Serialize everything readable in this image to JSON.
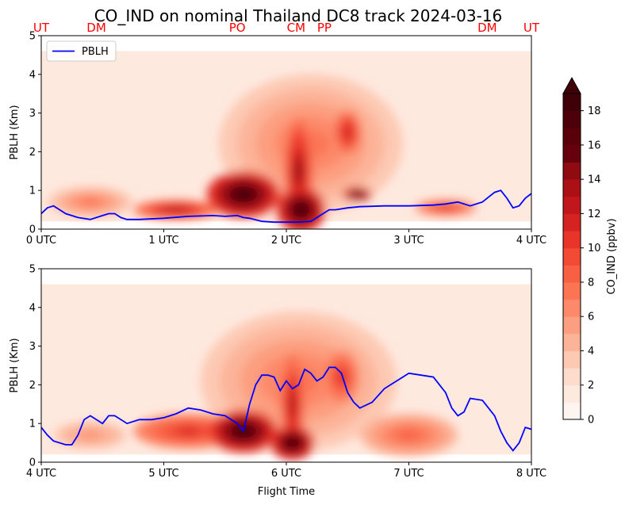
{
  "figure": {
    "title": "CO_IND on nominal Thailand DC8 track 2024-03-16",
    "xlabel": "Flight Time"
  },
  "chart_data": [
    {
      "type": "heatmap",
      "panel": "top",
      "ylabel": "PBLH (Km)",
      "ylim": [
        0,
        5
      ],
      "yticks": [
        "0",
        "1",
        "2",
        "3",
        "4",
        "5"
      ],
      "xlim": [
        0,
        4
      ],
      "xticks": [
        {
          "v": 0,
          "label": "0 UTC"
        },
        {
          "v": 1,
          "label": "1 UTC"
        },
        {
          "v": 2,
          "label": "2 UTC"
        },
        {
          "v": 3,
          "label": "3 UTC"
        },
        {
          "v": 4,
          "label": "4 UTC"
        }
      ],
      "legend": {
        "placement": "upper-left",
        "entries": [
          "PBLH"
        ]
      },
      "location_labels": [
        {
          "v": 0.0,
          "label": "UT"
        },
        {
          "v": 0.45,
          "label": "DM"
        },
        {
          "v": 1.6,
          "label": "PO"
        },
        {
          "v": 2.08,
          "label": "CM"
        },
        {
          "v": 2.31,
          "label": "PP"
        },
        {
          "v": 3.64,
          "label": "DM"
        },
        {
          "v": 4.0,
          "label": "UT"
        }
      ],
      "series": [
        {
          "name": "PBLH",
          "color": "#0000ff",
          "x": [
            0,
            0.05,
            0.1,
            0.15,
            0.2,
            0.3,
            0.4,
            0.5,
            0.55,
            0.6,
            0.65,
            0.7,
            0.8,
            1.0,
            1.2,
            1.4,
            1.5,
            1.6,
            1.65,
            1.7,
            1.8,
            1.9,
            2.0,
            2.1,
            2.2,
            2.3,
            2.35,
            2.4,
            2.5,
            2.6,
            2.8,
            3.0,
            3.2,
            3.3,
            3.4,
            3.5,
            3.6,
            3.7,
            3.75,
            3.8,
            3.85,
            3.9,
            3.95,
            4.0
          ],
          "y": [
            0.4,
            0.55,
            0.6,
            0.5,
            0.4,
            0.3,
            0.25,
            0.35,
            0.4,
            0.4,
            0.3,
            0.25,
            0.25,
            0.28,
            0.33,
            0.35,
            0.33,
            0.35,
            0.3,
            0.28,
            0.2,
            0.18,
            0.18,
            0.18,
            0.2,
            0.4,
            0.5,
            0.5,
            0.55,
            0.58,
            0.6,
            0.6,
            0.62,
            0.65,
            0.7,
            0.6,
            0.7,
            0.95,
            1.0,
            0.8,
            0.55,
            0.6,
            0.8,
            0.92
          ]
        }
      ],
      "co_blobs": [
        {
          "x": 1.65,
          "y": 0.9,
          "rx": 0.3,
          "ry": 0.6,
          "v": 18
        },
        {
          "x": 2.12,
          "y": 0.5,
          "rx": 0.2,
          "ry": 0.6,
          "v": 19
        },
        {
          "x": 2.1,
          "y": 1.5,
          "rx": 0.12,
          "ry": 1.4,
          "v": 14
        },
        {
          "x": 2.5,
          "y": 2.5,
          "rx": 0.12,
          "ry": 0.6,
          "v": 12
        },
        {
          "x": 2.58,
          "y": 0.9,
          "rx": 0.12,
          "ry": 0.18,
          "v": 18
        },
        {
          "x": 1.1,
          "y": 0.5,
          "rx": 0.35,
          "ry": 0.25,
          "v": 13
        },
        {
          "x": 0.4,
          "y": 0.7,
          "rx": 0.35,
          "ry": 0.4,
          "v": 7
        },
        {
          "x": 3.3,
          "y": 0.55,
          "rx": 0.25,
          "ry": 0.2,
          "v": 11
        },
        {
          "x": 2.2,
          "y": 2.2,
          "rx": 0.75,
          "ry": 1.8,
          "v": 7
        }
      ]
    },
    {
      "type": "heatmap",
      "panel": "bottom",
      "ylabel": "PBLH (Km)",
      "ylim": [
        0,
        5
      ],
      "yticks": [
        "0",
        "1",
        "2",
        "3",
        "4",
        "5"
      ],
      "xlim": [
        4,
        8
      ],
      "xticks": [
        {
          "v": 4,
          "label": "4 UTC"
        },
        {
          "v": 5,
          "label": "5 UTC"
        },
        {
          "v": 6,
          "label": "6 UTC"
        },
        {
          "v": 7,
          "label": "7 UTC"
        },
        {
          "v": 8,
          "label": "8 UTC"
        }
      ],
      "series": [
        {
          "name": "PBLH",
          "color": "#0000ff",
          "x": [
            4.0,
            4.05,
            4.1,
            4.2,
            4.25,
            4.3,
            4.35,
            4.4,
            4.45,
            4.5,
            4.55,
            4.6,
            4.7,
            4.8,
            4.9,
            5.0,
            5.1,
            5.2,
            5.3,
            5.4,
            5.5,
            5.6,
            5.65,
            5.7,
            5.75,
            5.8,
            5.85,
            5.9,
            5.95,
            6.0,
            6.05,
            6.1,
            6.15,
            6.2,
            6.25,
            6.3,
            6.35,
            6.4,
            6.45,
            6.5,
            6.55,
            6.6,
            6.7,
            6.8,
            6.9,
            7.0,
            7.1,
            7.2,
            7.3,
            7.35,
            7.4,
            7.45,
            7.5,
            7.6,
            7.7,
            7.75,
            7.8,
            7.85,
            7.9,
            7.95,
            8.0
          ],
          "y": [
            0.9,
            0.7,
            0.55,
            0.45,
            0.45,
            0.7,
            1.1,
            1.2,
            1.1,
            1.0,
            1.2,
            1.2,
            1.0,
            1.1,
            1.1,
            1.15,
            1.25,
            1.4,
            1.35,
            1.25,
            1.2,
            1.0,
            0.8,
            1.5,
            2.0,
            2.25,
            2.25,
            2.2,
            1.85,
            2.1,
            1.9,
            2.0,
            2.4,
            2.3,
            2.1,
            2.2,
            2.45,
            2.45,
            2.3,
            1.8,
            1.55,
            1.4,
            1.55,
            1.9,
            2.1,
            2.3,
            2.25,
            2.2,
            1.8,
            1.4,
            1.2,
            1.3,
            1.65,
            1.6,
            1.2,
            0.8,
            0.5,
            0.3,
            0.5,
            0.9,
            0.85
          ]
        }
      ],
      "co_blobs": [
        {
          "x": 5.65,
          "y": 0.8,
          "rx": 0.28,
          "ry": 0.55,
          "v": 18
        },
        {
          "x": 6.05,
          "y": 0.5,
          "rx": 0.18,
          "ry": 0.45,
          "v": 19
        },
        {
          "x": 6.05,
          "y": 1.5,
          "rx": 0.1,
          "ry": 1.3,
          "v": 13
        },
        {
          "x": 5.2,
          "y": 0.8,
          "rx": 0.45,
          "ry": 0.45,
          "v": 11
        },
        {
          "x": 6.45,
          "y": 2.2,
          "rx": 0.15,
          "ry": 0.7,
          "v": 11
        },
        {
          "x": 7.0,
          "y": 0.7,
          "rx": 0.4,
          "ry": 0.55,
          "v": 8
        },
        {
          "x": 4.4,
          "y": 0.7,
          "rx": 0.3,
          "ry": 0.35,
          "v": 6
        },
        {
          "x": 6.1,
          "y": 2.1,
          "rx": 0.8,
          "ry": 1.8,
          "v": 7
        }
      ]
    }
  ],
  "colorbar": {
    "label": "CO_IND (ppbv)",
    "ticks": [
      "0",
      "2",
      "4",
      "6",
      "8",
      "10",
      "12",
      "14",
      "16",
      "18"
    ],
    "vmin": 0,
    "vmax": 19,
    "levels": [
      0,
      1,
      2,
      3,
      4,
      5,
      6,
      7,
      8,
      9,
      10,
      11,
      12,
      13,
      14,
      15,
      16,
      17,
      18,
      19
    ],
    "colors": [
      "#fff5f0",
      "#fee9df",
      "#fedccd",
      "#fdc9b3",
      "#fcb499",
      "#fc9f80",
      "#fc8a6a",
      "#fb7555",
      "#f86044",
      "#f24a35",
      "#e83429",
      "#d52321",
      "#c1161b",
      "#ab1016",
      "#900a12",
      "#67000d",
      "#5a000b",
      "#4d000a",
      "#400008"
    ],
    "extend": "max"
  }
}
